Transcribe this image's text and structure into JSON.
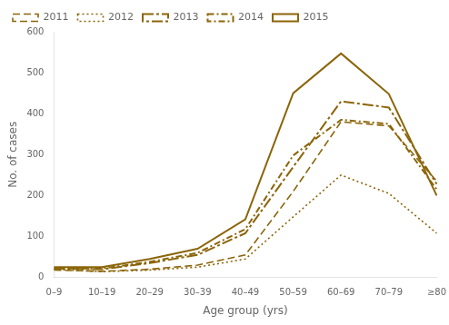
{
  "chart_data": {
    "type": "line",
    "xlabel": "Age group (yrs)",
    "ylabel": "No. of cases",
    "categories": [
      "0–9",
      "10–19",
      "20–29",
      "30–39",
      "40–49",
      "50–59",
      "60–69",
      "70–79",
      "≥80"
    ],
    "series": [
      {
        "name": "2011",
        "color": "#8B6508",
        "line_style": "dashed",
        "values": [
          18,
          15,
          20,
          30,
          55,
          210,
          380,
          370,
          235
        ]
      },
      {
        "name": "2012",
        "color": "#8B6508",
        "line_style": "dotted",
        "values": [
          20,
          14,
          18,
          25,
          45,
          148,
          250,
          205,
          108
        ]
      },
      {
        "name": "2013",
        "color": "#8B6508",
        "line_style": "longdashdot",
        "values": [
          22,
          20,
          35,
          55,
          108,
          270,
          430,
          415,
          228
        ]
      },
      {
        "name": "2014",
        "color": "#8B6508",
        "line_style": "dashdot",
        "values": [
          22,
          22,
          38,
          60,
          118,
          298,
          385,
          375,
          215
        ]
      },
      {
        "name": "2015",
        "color": "#8B6508",
        "line_style": "solid",
        "values": [
          25,
          25,
          45,
          70,
          142,
          450,
          547,
          448,
          200
        ]
      }
    ],
    "ylim": [
      0,
      600
    ],
    "yticks": [
      0,
      100,
      200,
      300,
      400,
      500,
      600
    ],
    "grid": false,
    "legend": "upper left"
  }
}
